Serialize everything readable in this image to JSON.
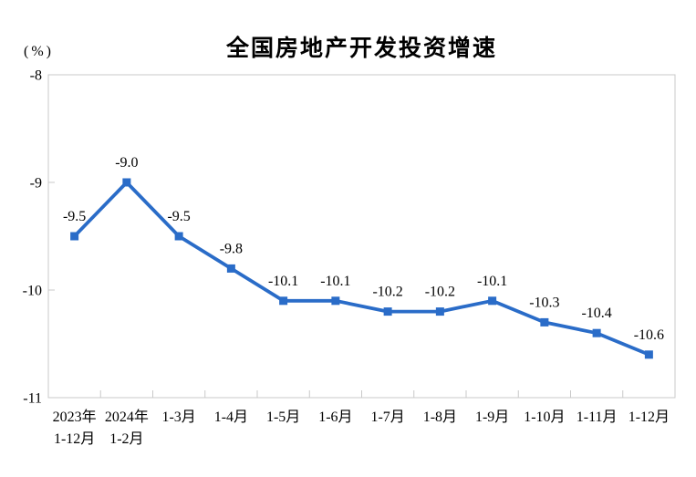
{
  "header": {
    "title": "全国房地产开发投资增速",
    "unit_label": "(%)"
  },
  "chart_data": {
    "type": "line",
    "title": "全国房地产开发投资增速",
    "ylabel": "(%)",
    "categories": [
      "2023年1-12月",
      "2024年1-2月",
      "1-3月",
      "1-4月",
      "1-5月",
      "1-6月",
      "1-7月",
      "1-8月",
      "1-9月",
      "1-10月",
      "1-11月",
      "1-12月"
    ],
    "category_lines": [
      [
        "2023年",
        "1-12月"
      ],
      [
        "2024年",
        "1-2月"
      ],
      [
        "1-3月"
      ],
      [
        "1-4月"
      ],
      [
        "1-5月"
      ],
      [
        "1-6月"
      ],
      [
        "1-7月"
      ],
      [
        "1-8月"
      ],
      [
        "1-9月"
      ],
      [
        "1-10月"
      ],
      [
        "1-11月"
      ],
      [
        "1-12月"
      ]
    ],
    "values": [
      -9.5,
      -9.0,
      -9.5,
      -9.8,
      -10.1,
      -10.1,
      -10.2,
      -10.2,
      -10.1,
      -10.3,
      -10.4,
      -10.6
    ],
    "data_labels": [
      "-9.5",
      "-9.0",
      "-9.5",
      "-9.8",
      "-10.1",
      "-10.1",
      "-10.2",
      "-10.2",
      "-10.1",
      "-10.3",
      "-10.4",
      "-10.6"
    ],
    "ylim": [
      -11,
      -8
    ],
    "ytick_values": [
      -8,
      -9,
      -10,
      -11
    ],
    "ytick_labels": [
      "-8",
      "-9",
      "-10",
      "-11"
    ],
    "grid": false,
    "legend": "none",
    "marker": "square",
    "colors": {
      "line": "#2A6CC8",
      "text": "#000000",
      "axis": "#C9C9C9"
    }
  }
}
